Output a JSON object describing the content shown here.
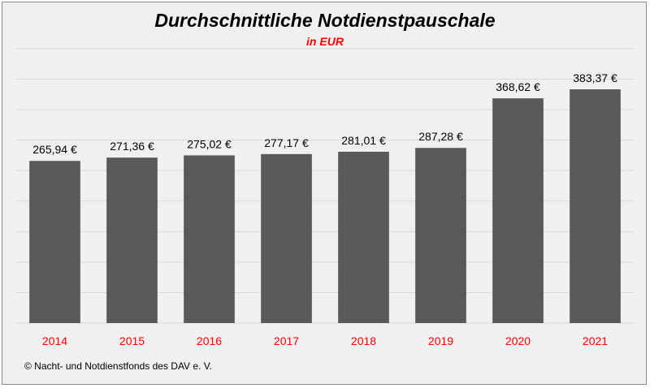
{
  "colors": {
    "bar": "#595959",
    "category_label": "#ff0000",
    "subtitle": "#ff0000",
    "gridline": "#d9d9d9",
    "background": "#f0f0f0"
  },
  "chart_data": {
    "type": "bar",
    "title": "Durchschnittliche Notdienstpauschale",
    "subtitle": "in EUR",
    "categories": [
      "2014",
      "2015",
      "2016",
      "2017",
      "2018",
      "2019",
      "2020",
      "2021"
    ],
    "values": [
      265.94,
      271.36,
      275.02,
      277.17,
      281.01,
      287.28,
      368.62,
      383.37
    ],
    "data_labels": [
      "265,94 €",
      "271,36 €",
      "275,02 €",
      "277,17 €",
      "281,01 €",
      "287,28 €",
      "368,62 €",
      "383,37 €"
    ],
    "xlabel": "",
    "ylabel": "",
    "ylim": [
      0,
      450
    ],
    "grid": true,
    "legend": "none"
  },
  "footer": {
    "source": "© Nacht- und Notdienstfonds des DAV e. V."
  }
}
